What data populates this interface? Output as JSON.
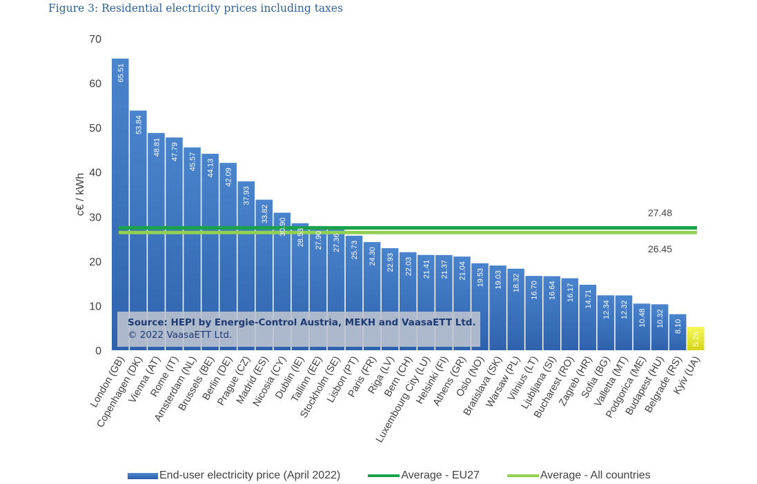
{
  "figure_title": "Figure 3: Residential electricity prices including taxes",
  "source": {
    "line1": "Source: HEPI by Energie-Control Austria, MEKH and VaasaETT Ltd.",
    "line2": "© 2022 VaasaETT Ltd."
  },
  "colors": {
    "bar": "#3a70bf",
    "bar_highlight": "#f2f23c",
    "avg_eu27": "#1aa34a",
    "avg_all": "#92d050"
  },
  "legend": {
    "bars": "End-user electricity price (April 2022)",
    "avg_eu27": "Average - EU27",
    "avg_all": "Average - All countries"
  },
  "chart_data": {
    "type": "bar",
    "title": "",
    "xlabel": "",
    "ylabel": "c€ / kWh",
    "ylim": [
      0,
      70
    ],
    "yticks": [
      0,
      10,
      20,
      30,
      40,
      50,
      60,
      70
    ],
    "grid": false,
    "legend_position": "bottom",
    "categories": [
      "London (GB)",
      "Copenhagen (DK)",
      "Vienna (AT)",
      "Rome (IT)",
      "Amsterdam (NL)",
      "Brussels (BE)",
      "Berlin (DE)",
      "Prague (CZ)",
      "Madrid (ES)",
      "Nicosia (CY)",
      "Dublin (IE)",
      "Tallinn (EE)",
      "Stockholm (SE)",
      "Lisbon (PT)",
      "Paris (FR)",
      "Riga (LV)",
      "Bern (CH)",
      "Luxembourg City (LU)",
      "Helsinki (FI)",
      "Athens (GR)",
      "Oslo (NO)",
      "Bratislava (SK)",
      "Warsaw (PL)",
      "Vilnius (LT)",
      "Ljubljana (SI)",
      "Bucharest (RO)",
      "Zagreb (HR)",
      "Sofia (BG)",
      "Valletta (MT)",
      "Podgorica (ME)",
      "Budapest (HU)",
      "Belgrade (RS)",
      "Kyiv (UA)"
    ],
    "series": [
      {
        "name": "End-user electricity price (April 2022)",
        "values": [
          65.51,
          53.84,
          48.81,
          47.79,
          45.57,
          44.13,
          42.09,
          37.93,
          33.82,
          30.9,
          28.53,
          27.9,
          27.36,
          25.73,
          24.3,
          22.93,
          22.03,
          21.41,
          21.37,
          21.04,
          19.53,
          19.03,
          18.32,
          16.7,
          16.64,
          16.17,
          14.71,
          12.34,
          12.32,
          10.48,
          10.32,
          8.1,
          5.26
        ],
        "labels": [
          "65.51",
          "53.84",
          "48.81",
          "47.79",
          "45.57",
          "44.13",
          "42.09",
          "37.93",
          "33.82",
          "30.90",
          "28.53",
          "27.90",
          "27.36",
          "25.73",
          "24.30",
          "22.93",
          "22.03",
          "21.41",
          "21.37",
          "21.04",
          "19.53",
          "19.03",
          "18.32",
          "16.70",
          "16.64",
          "16.17",
          "14.71",
          "12.34",
          "12.32",
          "10.48",
          "10.32",
          "8.10",
          "5.26"
        ]
      }
    ],
    "reference_lines": [
      {
        "name": "Average - EU27",
        "value": 27.48,
        "label": "27.48"
      },
      {
        "name": "Average - All countries",
        "value": 26.45,
        "label": "26.45"
      }
    ]
  }
}
